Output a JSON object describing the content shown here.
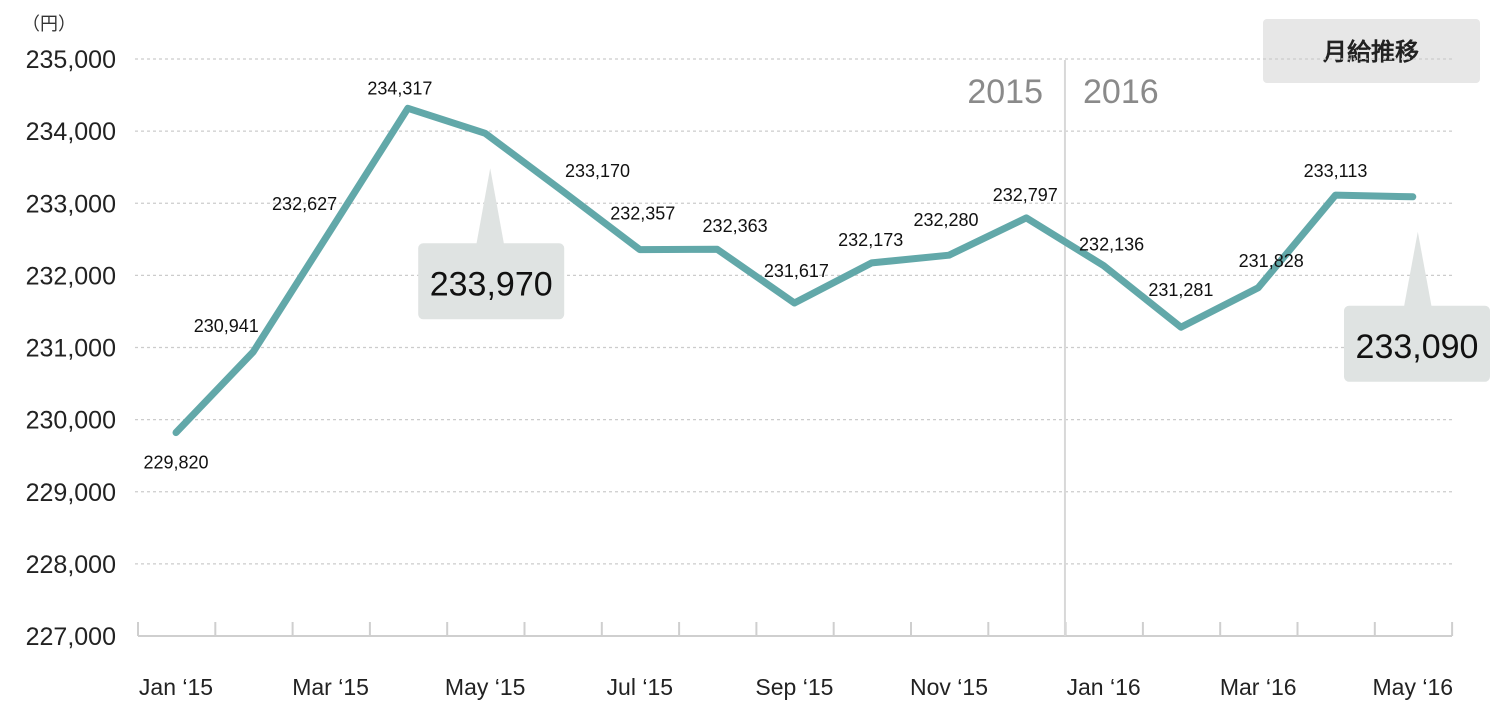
{
  "chart_data": {
    "type": "line",
    "title": "月給推移",
    "unit_label": "（円）",
    "xlabel": "",
    "ylabel": "（円）",
    "ylim": [
      227000,
      235000
    ],
    "yticks": [
      227000,
      228000,
      229000,
      230000,
      231000,
      232000,
      233000,
      234000,
      235000
    ],
    "ytick_labels": [
      "227,000",
      "228,000",
      "229,000",
      "230,000",
      "231,000",
      "232,000",
      "233,000",
      "234,000",
      "235,000"
    ],
    "categories": [
      "Jan '15",
      "Feb '15",
      "Mar '15",
      "Apr '15",
      "May '15",
      "Jun '15",
      "Jul '15",
      "Aug '15",
      "Sep '15",
      "Oct '15",
      "Nov '15",
      "Dec '15",
      "Jan '16",
      "Feb '16",
      "Mar '16",
      "Apr '16",
      "May '16"
    ],
    "xtick_labels": [
      {
        "index": 0,
        "label": "Jan ‘15"
      },
      {
        "index": 2,
        "label": "Mar ‘15"
      },
      {
        "index": 4,
        "label": "May ‘15"
      },
      {
        "index": 6,
        "label": "Jul ‘15"
      },
      {
        "index": 8,
        "label": "Sep  ‘15"
      },
      {
        "index": 10,
        "label": "Nov ‘15"
      },
      {
        "index": 12,
        "label": "Jan ‘16"
      },
      {
        "index": 14,
        "label": "Mar ‘16"
      },
      {
        "index": 16,
        "label": "May ‘16"
      }
    ],
    "series": [
      {
        "name": "月給",
        "color": "#62a8a9",
        "values": [
          229820,
          230941,
          232627,
          234317,
          233970,
          233170,
          232357,
          232363,
          231617,
          232173,
          232280,
          232797,
          232136,
          231281,
          231828,
          233113,
          233090
        ]
      }
    ],
    "data_labels": [
      "229,820",
      "230,941",
      "232,627",
      "234,317",
      "",
      "233,170",
      "232,357",
      "232,363",
      "231,617",
      "232,173",
      "232,280",
      "232,797",
      "232,136",
      "231,281",
      "231,828",
      "233,113",
      ""
    ],
    "callouts": [
      {
        "index": 4,
        "label": "233,970"
      },
      {
        "index": 16,
        "label": "233,090"
      }
    ],
    "year_divider": {
      "after_index": 11,
      "left_label": "2015",
      "right_label": "2016"
    },
    "grid": true,
    "colors": {
      "line": "#62a8a9",
      "callout_bg": "#dfe3e2",
      "grid": "#cccccc",
      "year_text": "#8a8a8a",
      "title_bg": "#e7e7e7"
    }
  }
}
